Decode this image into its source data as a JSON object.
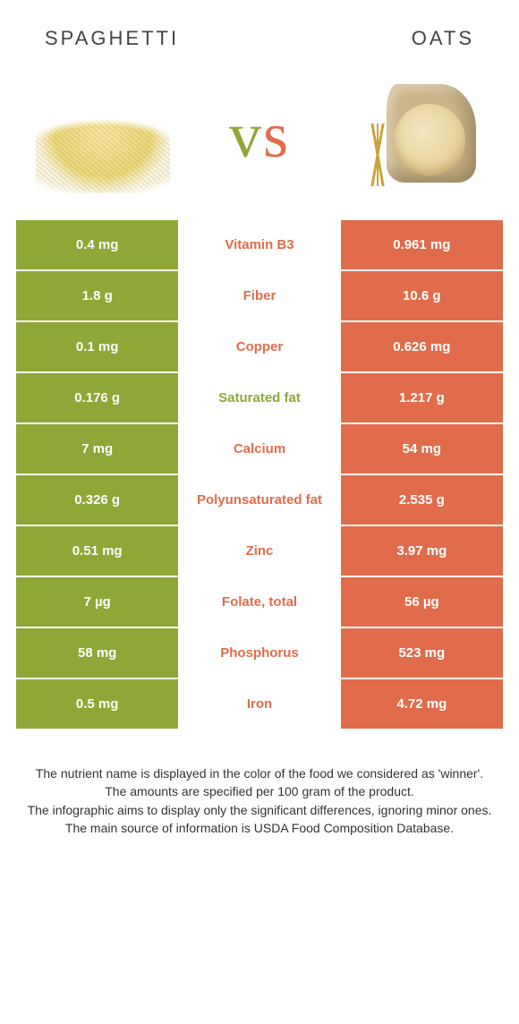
{
  "colors": {
    "green": "#8fa736",
    "orange": "#e06c4b",
    "text": "#333333",
    "white": "#ffffff"
  },
  "header": {
    "left_title": "Spaghetti",
    "right_title": "Oats",
    "vs_label": "vs"
  },
  "rows": [
    {
      "left": "0.4 mg",
      "label": "Vitamin B3",
      "right": "0.961 mg",
      "winner": "right"
    },
    {
      "left": "1.8 g",
      "label": "Fiber",
      "right": "10.6 g",
      "winner": "right"
    },
    {
      "left": "0.1 mg",
      "label": "Copper",
      "right": "0.626 mg",
      "winner": "right"
    },
    {
      "left": "0.176 g",
      "label": "Saturated fat",
      "right": "1.217 g",
      "winner": "left"
    },
    {
      "left": "7 mg",
      "label": "Calcium",
      "right": "54 mg",
      "winner": "right"
    },
    {
      "left": "0.326 g",
      "label": "Polyunsaturated fat",
      "right": "2.535 g",
      "winner": "right"
    },
    {
      "left": "0.51 mg",
      "label": "Zinc",
      "right": "3.97 mg",
      "winner": "right"
    },
    {
      "left": "7 µg",
      "label": "Folate, total",
      "right": "56 µg",
      "winner": "right"
    },
    {
      "left": "58 mg",
      "label": "Phosphorus",
      "right": "523 mg",
      "winner": "right"
    },
    {
      "left": "0.5 mg",
      "label": "Iron",
      "right": "4.72 mg",
      "winner": "right"
    }
  ],
  "footer_lines": [
    "The nutrient name is displayed in the color of the food we considered as 'winner'.",
    "The amounts are specified per 100 gram of the product.",
    "The infographic aims to display only the significant differences, ignoring minor ones.",
    "The main source of information is USDA Food Composition Database."
  ]
}
